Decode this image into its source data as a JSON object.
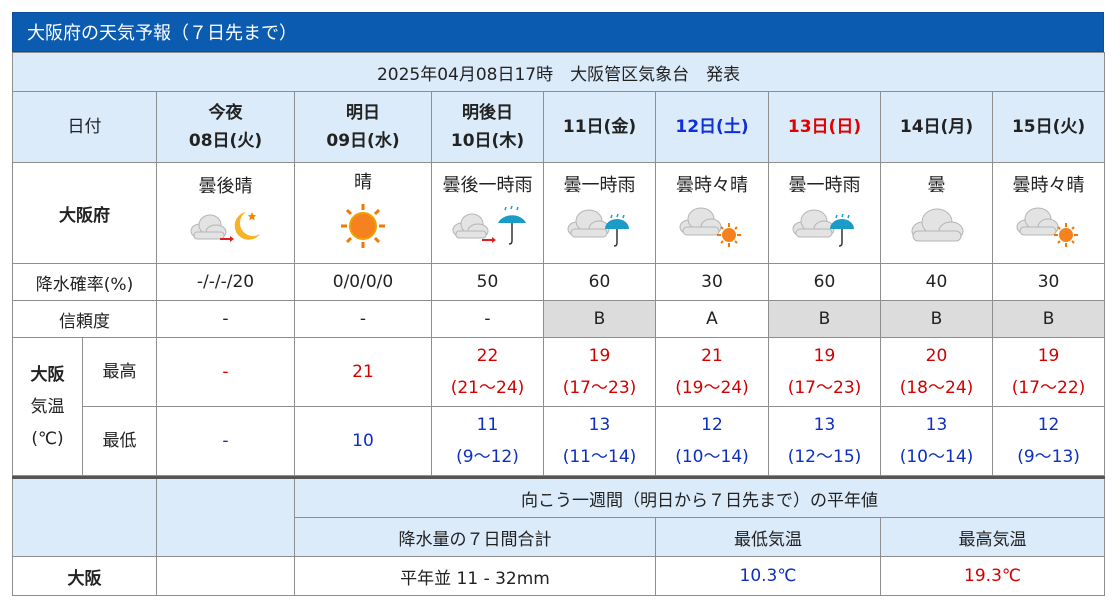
{
  "title": "大阪府の天気予報（７日先まで）",
  "issued": "2025年04月08日17時　大阪管区気象台　発表",
  "labels": {
    "date": "日付",
    "region": "大阪府",
    "precip": "降水確率(%)",
    "reliability": "信頼度",
    "city": "大阪",
    "temp_line1": "気温",
    "temp_line2": "(℃)",
    "max": "最高",
    "min": "最低"
  },
  "days": [
    {
      "line1": "今夜",
      "line2": "08日(火)",
      "weather": "曇後晴",
      "icon": "cloud-then-moon-icon",
      "precip": "-/-/-/20",
      "reliability": "-",
      "max": "-",
      "max_range": "",
      "min": "-",
      "min_range": "",
      "dayclass": ""
    },
    {
      "line1": "明日",
      "line2": "09日(水)",
      "weather": "晴",
      "icon": "sun-icon",
      "precip": "0/0/0/0",
      "reliability": "-",
      "max": "21",
      "max_range": "",
      "min": "10",
      "min_range": "",
      "dayclass": ""
    },
    {
      "line1": "明後日",
      "line2": "10日(木)",
      "weather": "曇後一時雨",
      "icon": "cloud-then-umbrella-icon",
      "precip": "50",
      "reliability": "-",
      "max": "22",
      "max_range": "(21～24)",
      "min": "11",
      "min_range": "(9～12)",
      "dayclass": ""
    },
    {
      "line1": "11日(金)",
      "line2": "",
      "weather": "曇一時雨",
      "icon": "cloud-umbrella-icon",
      "precip": "60",
      "reliability": "B",
      "max": "19",
      "max_range": "(17～23)",
      "min": "13",
      "min_range": "(11～14)",
      "dayclass": ""
    },
    {
      "line1": "12日(土)",
      "line2": "",
      "weather": "曇時々晴",
      "icon": "cloud-sun-icon",
      "precip": "30",
      "reliability": "A",
      "max": "21",
      "max_range": "(19～24)",
      "min": "12",
      "min_range": "(10～14)",
      "dayclass": "sat"
    },
    {
      "line1": "13日(日)",
      "line2": "",
      "weather": "曇一時雨",
      "icon": "cloud-umbrella-icon",
      "precip": "60",
      "reliability": "B",
      "max": "19",
      "max_range": "(17～23)",
      "min": "13",
      "min_range": "(12～15)",
      "dayclass": "sun"
    },
    {
      "line1": "14日(月)",
      "line2": "",
      "weather": "曇",
      "icon": "cloud-icon",
      "precip": "40",
      "reliability": "B",
      "max": "20",
      "max_range": "(18～24)",
      "min": "13",
      "min_range": "(10～14)",
      "dayclass": ""
    },
    {
      "line1": "15日(火)",
      "line2": "",
      "weather": "曇時々晴",
      "icon": "cloud-sun-icon",
      "precip": "30",
      "reliability": "B",
      "max": "19",
      "max_range": "(17～22)",
      "min": "12",
      "min_range": "(9～13)",
      "dayclass": ""
    }
  ],
  "normals": {
    "heading": "向こう一週間（明日から７日先まで）の平年値",
    "precip_label": "降水量の７日間合計",
    "min_label": "最低気温",
    "max_label": "最高気温",
    "city": "大阪",
    "precip_value": "平年並 11 - 32mm",
    "min_value": "10.3℃",
    "max_value": "19.3℃"
  },
  "colors": {
    "header_bg": "#0b5bb0",
    "cell_bg": "#dcebfa",
    "max_temp": "#d20000",
    "min_temp": "#0c2fc0",
    "saturday": "#0f2fd8",
    "sunday": "#e00000",
    "low_reliability_bg": "#dcdcdc"
  }
}
